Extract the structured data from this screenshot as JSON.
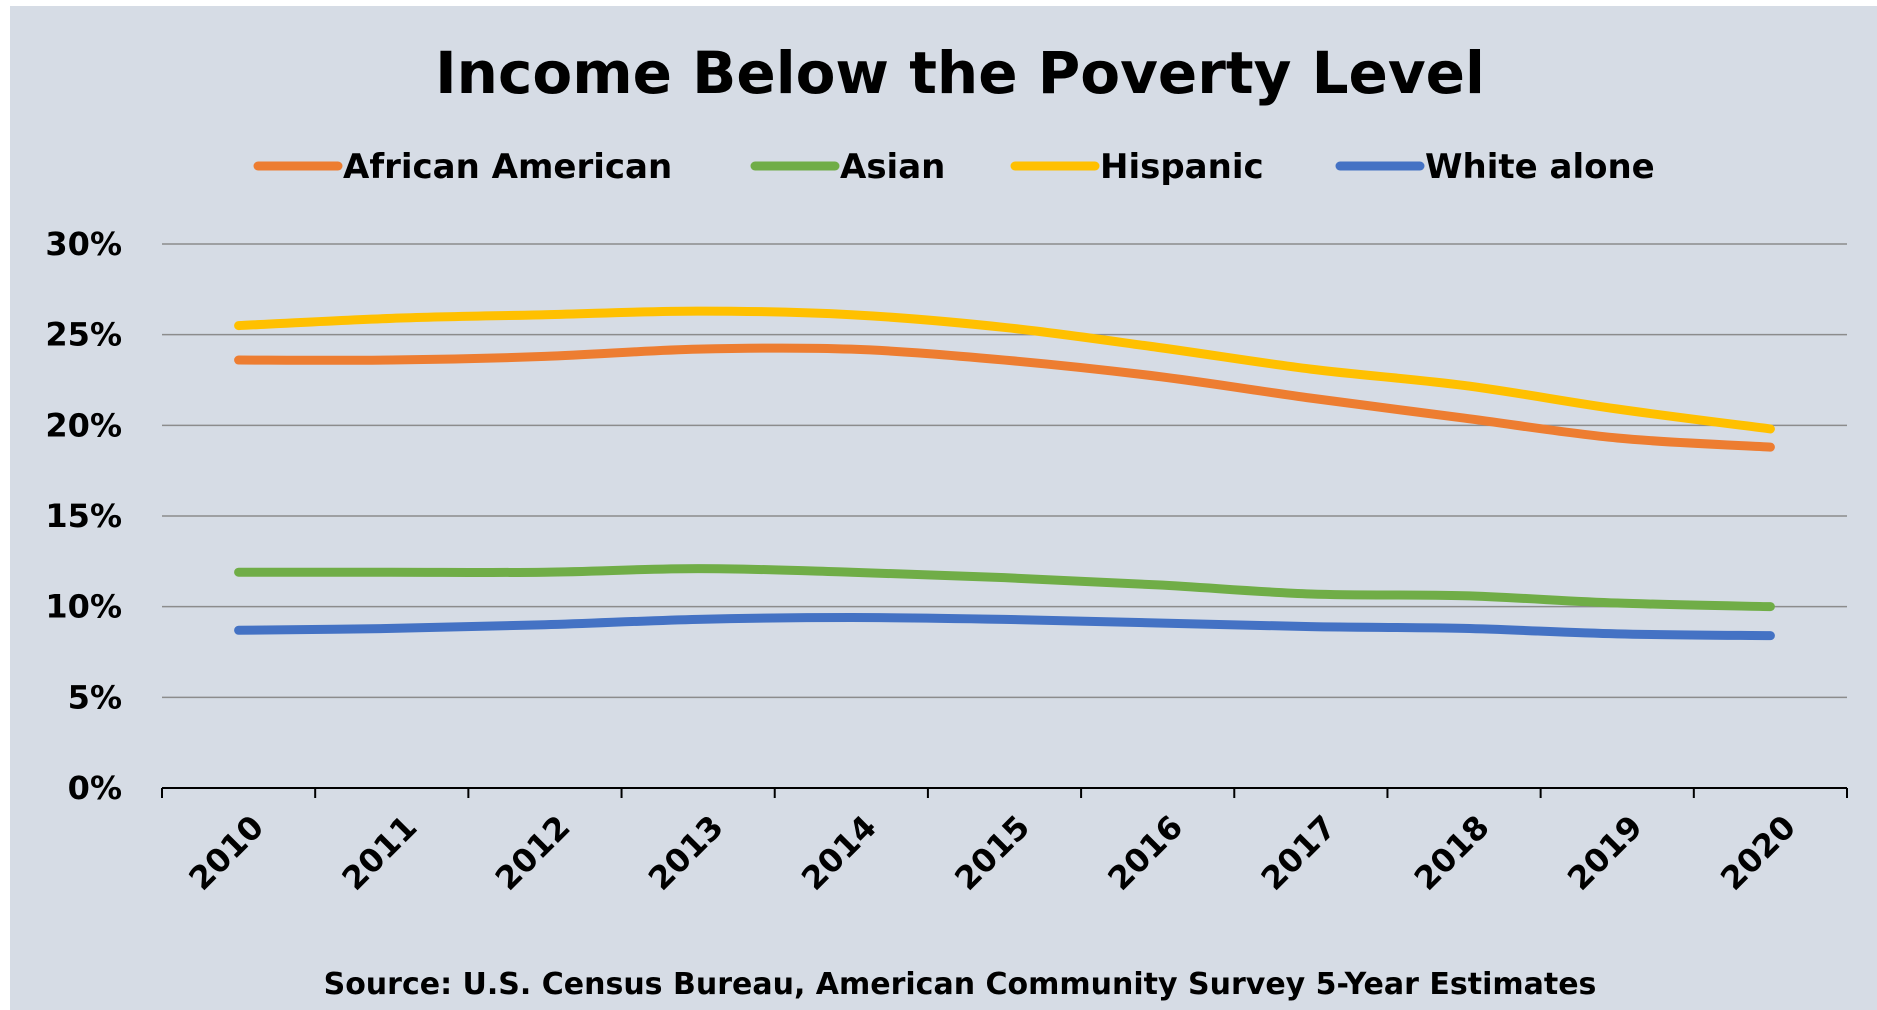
{
  "chart_data": {
    "type": "line",
    "title": "Income Below the Poverty Level",
    "source": "Source: U.S. Census Bureau, American Community Survey 5-Year Estimates",
    "x": [
      "2010",
      "2011",
      "2012",
      "2013",
      "2014",
      "2015",
      "2016",
      "2017",
      "2018",
      "2019",
      "2020"
    ],
    "ylim": [
      0,
      30
    ],
    "yticks": [
      0,
      5,
      10,
      15,
      20,
      25,
      30
    ],
    "ytick_labels": [
      "0%",
      "5%",
      "10%",
      "15%",
      "20%",
      "25%",
      "30%"
    ],
    "grid": true,
    "legend_position": "top",
    "series": [
      {
        "name": "African American",
        "color": "#ed7d31",
        "values": [
          23.6,
          23.6,
          23.8,
          24.2,
          24.2,
          23.6,
          22.7,
          21.5,
          20.4,
          19.3,
          18.8
        ]
      },
      {
        "name": "Asian",
        "color": "#70ad47",
        "values": [
          11.9,
          11.9,
          11.9,
          12.1,
          11.9,
          11.6,
          11.2,
          10.7,
          10.6,
          10.2,
          10.0
        ]
      },
      {
        "name": "Hispanic",
        "color": "#ffc000",
        "values": [
          25.5,
          25.9,
          26.1,
          26.3,
          26.1,
          25.4,
          24.3,
          23.1,
          22.2,
          20.9,
          19.8
        ]
      },
      {
        "name": "White alone",
        "color": "#4472c4",
        "values": [
          8.7,
          8.8,
          9.0,
          9.3,
          9.4,
          9.3,
          9.1,
          8.9,
          8.8,
          8.5,
          8.4
        ]
      }
    ]
  }
}
